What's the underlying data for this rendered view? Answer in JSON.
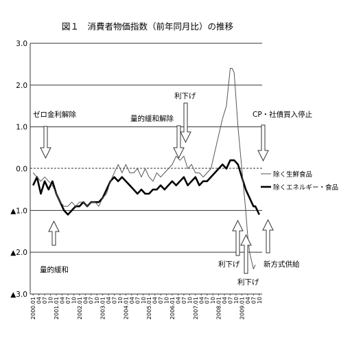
{
  "chart_data": {
    "type": "line",
    "title": "図１　消費者物価指数（前年同月比）の推移",
    "ylim": [
      -3.0,
      3.0
    ],
    "y_ticks": [
      "3.0",
      "2.0",
      "1.0",
      "0.0",
      "▲1.0",
      "▲2.0",
      "▲3.0"
    ],
    "y_tick_values": [
      3,
      2,
      1,
      0,
      -1,
      -2,
      -3
    ],
    "grid": "horizontal",
    "x_range": [
      "2000-01",
      "2009-10"
    ],
    "x_tick_labels": [
      "2000.01",
      "04",
      "07",
      "10",
      "2001.01",
      "04",
      "07",
      "10",
      "2002.01",
      "04",
      "07",
      "10",
      "2003.01",
      "04",
      "07",
      "10",
      "2004.01",
      "04",
      "07",
      "10",
      "2005.01",
      "04",
      "07",
      "10",
      "2006.01",
      "04",
      "07",
      "10",
      "2007.01",
      "04",
      "07",
      "10",
      "2008.01",
      "04",
      "07",
      "10",
      "2009.01",
      "04",
      "07",
      "10"
    ],
    "legend_position": "right",
    "series": [
      {
        "name": "除く生鮮食品",
        "style": "thin",
        "color": "#555555",
        "points": [
          [
            "2000-01",
            -0.1
          ],
          [
            "2000-03",
            -0.2
          ],
          [
            "2000-05",
            -0.3
          ],
          [
            "2000-07",
            -0.2
          ],
          [
            "2000-09",
            -0.3
          ],
          [
            "2000-11",
            -0.4
          ],
          [
            "2001-01",
            -0.6
          ],
          [
            "2001-03",
            -0.8
          ],
          [
            "2001-05",
            -0.9
          ],
          [
            "2001-07",
            -0.9
          ],
          [
            "2001-09",
            -0.8
          ],
          [
            "2001-11",
            -0.9
          ],
          [
            "2002-01",
            -0.8
          ],
          [
            "2002-03",
            -0.8
          ],
          [
            "2002-05",
            -0.9
          ],
          [
            "2002-07",
            -0.8
          ],
          [
            "2002-09",
            -0.8
          ],
          [
            "2002-11",
            -0.9
          ],
          [
            "2003-01",
            -0.7
          ],
          [
            "2003-03",
            -0.6
          ],
          [
            "2003-05",
            -0.3
          ],
          [
            "2003-07",
            -0.1
          ],
          [
            "2003-09",
            0.1
          ],
          [
            "2003-11",
            -0.1
          ],
          [
            "2004-01",
            0.1
          ],
          [
            "2004-03",
            -0.1
          ],
          [
            "2004-05",
            -0.1
          ],
          [
            "2004-07",
            0.0
          ],
          [
            "2004-09",
            -0.2
          ],
          [
            "2004-11",
            0.0
          ],
          [
            "2005-01",
            -0.2
          ],
          [
            "2005-03",
            -0.3
          ],
          [
            "2005-05",
            -0.1
          ],
          [
            "2005-07",
            -0.2
          ],
          [
            "2005-09",
            -0.1
          ],
          [
            "2005-11",
            0.0
          ],
          [
            "2006-01",
            0.1
          ],
          [
            "2006-03",
            0.3
          ],
          [
            "2006-05",
            0.2
          ],
          [
            "2006-07",
            0.3
          ],
          [
            "2006-09",
            0.0
          ],
          [
            "2006-11",
            0.1
          ],
          [
            "2007-01",
            -0.1
          ],
          [
            "2007-03",
            -0.1
          ],
          [
            "2007-05",
            -0.2
          ],
          [
            "2007-07",
            -0.1
          ],
          [
            "2007-09",
            0.0
          ],
          [
            "2007-11",
            0.4
          ],
          [
            "2008-01",
            0.8
          ],
          [
            "2008-03",
            1.2
          ],
          [
            "2008-05",
            1.5
          ],
          [
            "2008-07",
            2.4
          ],
          [
            "2008-08",
            2.4
          ],
          [
            "2008-09",
            2.3
          ],
          [
            "2008-11",
            1.0
          ],
          [
            "2009-01",
            0.0
          ],
          [
            "2009-02",
            -0.5
          ],
          [
            "2009-03",
            -1.0
          ],
          [
            "2009-04",
            -1.6
          ],
          [
            "2009-05",
            -2.0
          ],
          [
            "2009-07",
            -2.4
          ],
          [
            "2009-08",
            -2.3
          ]
        ]
      },
      {
        "name": "除くエネルギー・食品",
        "style": "thick",
        "color": "#222222",
        "points": [
          [
            "2000-01",
            -0.4
          ],
          [
            "2000-03",
            -0.2
          ],
          [
            "2000-05",
            -0.6
          ],
          [
            "2000-07",
            -0.3
          ],
          [
            "2000-09",
            -0.5
          ],
          [
            "2000-11",
            -0.3
          ],
          [
            "2001-01",
            -0.6
          ],
          [
            "2001-03",
            -0.8
          ],
          [
            "2001-05",
            -1.0
          ],
          [
            "2001-07",
            -1.1
          ],
          [
            "2001-09",
            -1.0
          ],
          [
            "2001-11",
            -0.9
          ],
          [
            "2002-01",
            -0.9
          ],
          [
            "2002-03",
            -0.8
          ],
          [
            "2002-05",
            -0.9
          ],
          [
            "2002-07",
            -0.8
          ],
          [
            "2002-09",
            -0.8
          ],
          [
            "2002-11",
            -0.8
          ],
          [
            "2003-01",
            -0.7
          ],
          [
            "2003-03",
            -0.5
          ],
          [
            "2003-05",
            -0.3
          ],
          [
            "2003-07",
            -0.2
          ],
          [
            "2003-09",
            -0.3
          ],
          [
            "2003-11",
            -0.2
          ],
          [
            "2004-01",
            -0.3
          ],
          [
            "2004-03",
            -0.4
          ],
          [
            "2004-05",
            -0.5
          ],
          [
            "2004-07",
            -0.6
          ],
          [
            "2004-09",
            -0.5
          ],
          [
            "2004-11",
            -0.6
          ],
          [
            "2005-01",
            -0.6
          ],
          [
            "2005-03",
            -0.5
          ],
          [
            "2005-05",
            -0.5
          ],
          [
            "2005-07",
            -0.4
          ],
          [
            "2005-09",
            -0.5
          ],
          [
            "2005-11",
            -0.4
          ],
          [
            "2006-01",
            -0.3
          ],
          [
            "2006-03",
            -0.4
          ],
          [
            "2006-05",
            -0.3
          ],
          [
            "2006-07",
            -0.2
          ],
          [
            "2006-09",
            -0.4
          ],
          [
            "2006-11",
            -0.3
          ],
          [
            "2007-01",
            -0.2
          ],
          [
            "2007-03",
            -0.4
          ],
          [
            "2007-05",
            -0.3
          ],
          [
            "2007-07",
            -0.3
          ],
          [
            "2007-09",
            -0.2
          ],
          [
            "2007-11",
            -0.1
          ],
          [
            "2008-01",
            0.0
          ],
          [
            "2008-03",
            0.1
          ],
          [
            "2008-05",
            0.0
          ],
          [
            "2008-07",
            0.2
          ],
          [
            "2008-09",
            0.2
          ],
          [
            "2008-11",
            0.1
          ],
          [
            "2009-01",
            -0.2
          ],
          [
            "2009-03",
            -0.5
          ],
          [
            "2009-05",
            -0.7
          ],
          [
            "2009-07",
            -0.9
          ],
          [
            "2009-08",
            -0.9
          ],
          [
            "2009-09",
            -1.0
          ],
          [
            "2009-10",
            -1.1
          ]
        ]
      }
    ],
    "annotations": [
      {
        "text": "ゼロ金利解除",
        "arrow": "down",
        "at": "2000-08"
      },
      {
        "text": "量的緩和",
        "arrow": "up",
        "at": "2001-03"
      },
      {
        "text": "量的緩和解除",
        "arrow": "down",
        "at": "2006-03"
      },
      {
        "text": "利下げ",
        "arrow": "down",
        "at": "2006-07"
      },
      {
        "text": "CP・社債買入停止",
        "arrow": "down",
        "at": "2009-10"
      },
      {
        "text": "利下げ",
        "arrow": "up",
        "at": "2008-10"
      },
      {
        "text": "利下げ",
        "arrow": "up",
        "at": "2008-12"
      },
      {
        "text": "新方式供給",
        "arrow": "up",
        "at": "2009-11"
      }
    ]
  }
}
